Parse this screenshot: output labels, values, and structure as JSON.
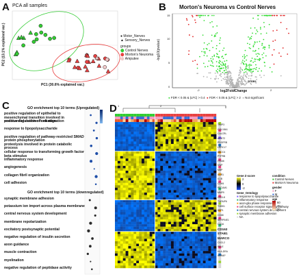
{
  "panels": {
    "a": "A",
    "b": "B",
    "c": "C",
    "d": "D"
  },
  "pca": {
    "title": "PCA all samples",
    "xlabel": "PC1 (30.6% explained var.)",
    "ylabel": "PC2 (13.1% explained var.)",
    "shape_legend": [
      "Motor_Nerves",
      "Sensory_Nerves"
    ],
    "groups_title": "groups",
    "groups": [
      "Control Nerves",
      "Morton's Neuroma",
      "Amputee"
    ],
    "colors": {
      "control": "#33cc33",
      "neuroma": "#e84141",
      "amputee": "#f0c8c8"
    }
  },
  "volcano": {
    "title": "Morton's Neuroma vs Control Nerves",
    "xlabel": "log2FoldChange",
    "ylabel": "-log10(pvalue)",
    "yticks": [
      "0",
      "5",
      "10",
      "15"
    ],
    "xticks": [
      "-2",
      "0",
      "2"
    ],
    "legend": [
      "FDR < 0.05 & |LFC| > 0.4",
      "FDR < 0.05 & |LFC| > 2",
      "Not significant"
    ],
    "highlight": [
      "STAB1"
    ],
    "colors": {
      "ns": "#b5b5b5",
      "sig": "#33dd33",
      "strong": "#e02020"
    }
  },
  "go": {
    "up_heading": "GO enrichment top 10 terms (Upregulated)",
    "up_terms": [
      "positive regulation of epithelial to mesenchymal transition involved in endocardial cushion formation",
      "positive regulation of cell migration",
      "response to lipopolysaccharide",
      "positive regulation of pathway-restricted SMAD protein phosphorylation",
      "proteolysis involved in protein catabolic process",
      "cellular response to transforming growth factor beta stimulus",
      "inflammatory response",
      "angiogenesis",
      "collagen fibril organization",
      "cell adhesion"
    ],
    "down_heading": "GO enrichment top 10 terms (downregulated)",
    "down_terms": [
      "synaptic membrane adhesion",
      "potassium ion import across plasma membrane",
      "central nervous system development",
      "membrane repolarization",
      "excitatory postsynaptic potential",
      "negative regulation of insulin secretion",
      "axon guidance",
      "muscle contraction",
      "myelination",
      "negative regulation of peptidase activity"
    ]
  },
  "heatmap": {
    "left_labels": [
      "1",
      "2"
    ],
    "genes": [
      "TIMP3",
      "COL18A1",
      "CALCRL",
      "ARNT2",
      "PDGFRB",
      "LRRC17",
      "ABCC4",
      "PTPRB",
      "ITGA6",
      "VWF",
      "MBP",
      "IL1R1",
      "IL1B",
      "CDH5",
      "PECAM1",
      "MMP9",
      "CXCL8",
      "TNFAIP6",
      "THBS1",
      "SPP1",
      "CD68",
      "SERPINE1",
      "C1QA",
      "CD163",
      "STAB1",
      "MARCO",
      "CXCL2",
      "SELE",
      "HLA-DRA",
      "IL1RAP"
    ],
    "bold_genes": [
      "CD163",
      "STAB1",
      "MARCO"
    ],
    "legend_z": "Gene Z-score",
    "z_ticks": [
      "2",
      "0",
      "-2"
    ],
    "legend_cond": "condition",
    "conditions": [
      "Control Nerves",
      "Morton's Neuroma"
    ],
    "legend_onto": "Gene_Ontology",
    "ontology": [
      "response to lipopolysaccharide",
      "inflammatory response",
      "axon-glia phase response",
      "cell surface receptor signaling pathway",
      "central nervous system development",
      "synaptic membrane adhesion",
      "NA"
    ],
    "legend_gender": "gender",
    "genders": [
      "F",
      "M"
    ],
    "legend_age": "age",
    "ages": [
      "60",
      "40",
      "20"
    ]
  }
}
